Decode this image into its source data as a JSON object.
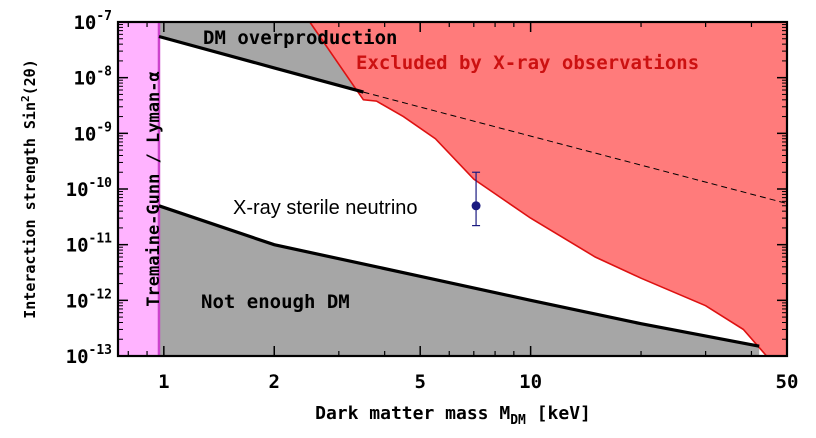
{
  "chart_data": {
    "type": "area",
    "x_scale": "log",
    "y_scale": "log",
    "xlim": [
      0.75,
      50
    ],
    "ylim": [
      1e-13,
      1e-07
    ],
    "xlabel_main": "Dark matter mass M",
    "xlabel_sub": "DM",
    "xlabel_unit": " [keV]",
    "ylabel_main": "Interaction strength Sin",
    "ylabel_sup": "2",
    "ylabel_tail": "(2θ)",
    "x_ticks": [
      {
        "value": 1,
        "label": "1"
      },
      {
        "value": 2,
        "label": "2"
      },
      {
        "value": 5,
        "label": "5"
      },
      {
        "value": 10,
        "label": "10"
      },
      {
        "value": 50,
        "label": "50"
      }
    ],
    "y_ticks": [
      {
        "value": 1e-07,
        "base": "10",
        "exp": "-7"
      },
      {
        "value": 1e-08,
        "base": "10",
        "exp": "-8"
      },
      {
        "value": 1e-09,
        "base": "10",
        "exp": "-9"
      },
      {
        "value": 1e-10,
        "base": "10",
        "exp": "-10"
      },
      {
        "value": 1e-11,
        "base": "10",
        "exp": "-11"
      },
      {
        "value": 1e-12,
        "base": "10",
        "exp": "-12"
      },
      {
        "value": 1e-13,
        "base": "10",
        "exp": "-13"
      }
    ],
    "regions": {
      "tremaine_gunn": {
        "label": "Tremaine-Gunn / Lyman-α",
        "x_range": [
          0.75,
          0.97
        ],
        "color": "#ffb3ff",
        "edge_color": "#cc44cc"
      },
      "overproduction": {
        "label": "DM overproduction",
        "color": "#a6a6a6",
        "boundary": [
          [
            0.97,
            5.5e-08
          ],
          [
            2,
            1.5e-08
          ],
          [
            3.5,
            5.5e-09
          ]
        ]
      },
      "not_enough": {
        "label": "Not enough DM",
        "color": "#a6a6a6",
        "boundary": [
          [
            0.97,
            5e-11
          ],
          [
            2,
            1e-11
          ],
          [
            5,
            2.7e-12
          ],
          [
            10,
            1e-12
          ],
          [
            20,
            3.8e-13
          ],
          [
            42,
            1.5e-13
          ]
        ]
      },
      "xray_excluded": {
        "label": "Excluded by X-ray observations",
        "color": "#ff7b7b",
        "edge_color": "#dd1111",
        "label_color": "#cc1111",
        "boundary": [
          [
            2.5,
            1e-07
          ],
          [
            3.3,
            7e-09
          ],
          [
            3.5,
            4e-09
          ],
          [
            3.8,
            3.8e-09
          ],
          [
            4.5,
            2e-09
          ],
          [
            5.5,
            8e-10
          ],
          [
            7,
            1.5e-10
          ],
          [
            10,
            3e-11
          ],
          [
            15,
            6e-12
          ],
          [
            20,
            2.5e-12
          ],
          [
            30,
            8e-13
          ],
          [
            38,
            3e-13
          ],
          [
            44,
            1e-13
          ]
        ]
      }
    },
    "dashed_line": [
      [
        3.5,
        5.5e-09
      ],
      [
        50,
        5.5e-11
      ]
    ],
    "point": {
      "label": "X-ray sterile neutrino",
      "x": 7.1,
      "y": 5e-11,
      "y_err": [
        2.2e-11,
        2e-10
      ],
      "color": "#1a1a80"
    }
  }
}
